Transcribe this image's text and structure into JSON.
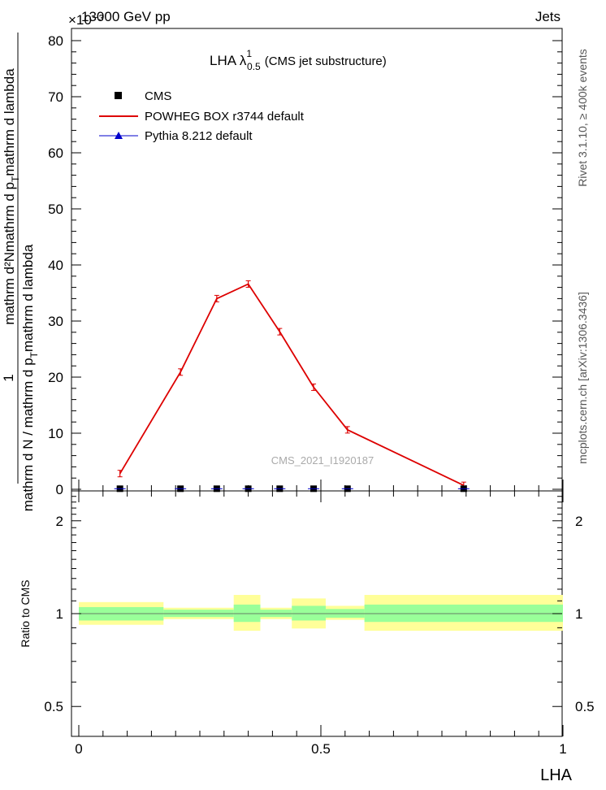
{
  "header": {
    "left": "13000 GeV pp",
    "right": "Jets",
    "exponent": "×10⁻³"
  },
  "side_labels": {
    "rivet": "Rivet 3.1.10, ≥ 400k events",
    "mcplots": "mcplots.cern.ch [arXiv:1306.3436]"
  },
  "chart_data": {
    "type": "line",
    "title": "LHA λ",
    "title_sup": "1",
    "title_sub": "0.5",
    "title_suffix": "(CMS jet substructure)",
    "watermark": "CMS_2021_I1920187",
    "ylabel_top": "1",
    "ylabel_left": "mathrm d N / mathrm d p",
    "ylabel_left_sub": "T",
    "ylabel_mid": "mathrm d p",
    "ylabel_mid_sub": "T",
    "ylabel_right": "mathrm d lambda",
    "ylabel_num": "mathrm d²N",
    "ylabel_numsub": "mathrm d lambda",
    "xlabel": "LHA",
    "xlim": [
      0,
      1
    ],
    "ylim": [
      0,
      80
    ],
    "y_scale": "×10⁻³",
    "y_ticks": [
      0,
      10,
      20,
      30,
      40,
      50,
      60,
      70,
      80
    ],
    "y_tick_labels": [
      "0",
      "10",
      "20",
      "30",
      "40",
      "50",
      "60",
      "70",
      "80"
    ],
    "x_ticks": [
      0,
      0.5,
      1
    ],
    "x_tick_labels": [
      "0",
      "0.5",
      "1"
    ],
    "legend": [
      {
        "name": "CMS",
        "marker": "square",
        "color": "#000000"
      },
      {
        "name": "POWHEG BOX r3744 default",
        "marker": "line",
        "color": "#dd0000"
      },
      {
        "name": "Pythia 8.212 default",
        "marker": "triangle",
        "color": "#0000cc"
      }
    ],
    "series": [
      {
        "name": "CMS",
        "x": [
          0.085,
          0.21,
          0.285,
          0.35,
          0.415,
          0.485,
          0.555,
          0.795
        ],
        "y": [
          0.1,
          0.1,
          0.1,
          0.1,
          0.1,
          0.1,
          0.1,
          0.1
        ]
      },
      {
        "name": "POWHEG BOX r3744 default",
        "x": [
          0.085,
          0.21,
          0.285,
          0.35,
          0.415,
          0.485,
          0.555,
          0.795
        ],
        "y": [
          2.8,
          20.9,
          34.0,
          36.6,
          28.1,
          18.2,
          10.6,
          0.7
        ]
      }
    ],
    "ratio": {
      "ylabel": "Ratio to CMS",
      "ylim_log": [
        0.4,
        2.5
      ],
      "y_ticks": [
        0.5,
        1,
        2
      ],
      "y_tick_labels": [
        "0.5",
        "1",
        "2"
      ],
      "bands": [
        {
          "x0": 0.0,
          "x1": 0.175,
          "inner": [
            0.95,
            1.05
          ],
          "outer": [
            0.92,
            1.09
          ]
        },
        {
          "x0": 0.175,
          "x1": 0.32,
          "inner": [
            0.975,
            1.03
          ],
          "outer": [
            0.96,
            1.045
          ]
        },
        {
          "x0": 0.32,
          "x1": 0.375,
          "inner": [
            0.94,
            1.07
          ],
          "outer": [
            0.88,
            1.15
          ]
        },
        {
          "x0": 0.375,
          "x1": 0.44,
          "inner": [
            0.975,
            1.03
          ],
          "outer": [
            0.96,
            1.045
          ]
        },
        {
          "x0": 0.44,
          "x1": 0.51,
          "inner": [
            0.95,
            1.06
          ],
          "outer": [
            0.895,
            1.12
          ]
        },
        {
          "x0": 0.51,
          "x1": 0.59,
          "inner": [
            0.97,
            1.035
          ],
          "outer": [
            0.955,
            1.06
          ]
        },
        {
          "x0": 0.59,
          "x1": 1.0,
          "inner": [
            0.94,
            1.07
          ],
          "outer": [
            0.88,
            1.15
          ]
        }
      ]
    }
  }
}
